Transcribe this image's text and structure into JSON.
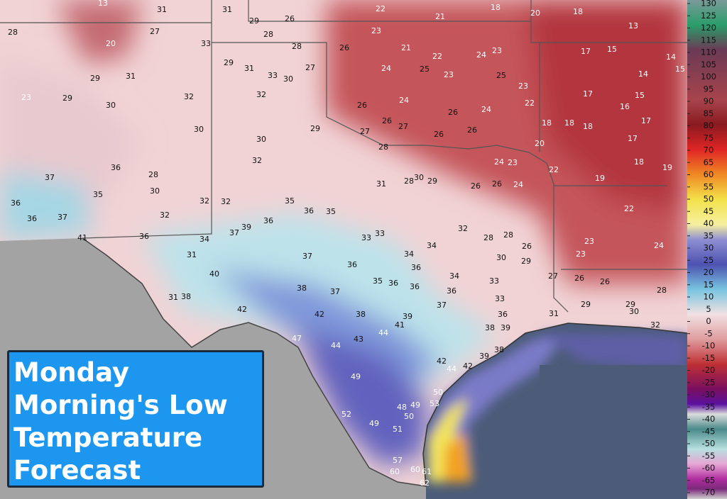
{
  "title_box": {
    "lines": [
      "Monday",
      "Morning's Low",
      "Temperature",
      "Forecast"
    ]
  },
  "colorbar": {
    "ticks": [
      130,
      125,
      120,
      115,
      110,
      105,
      100,
      95,
      90,
      85,
      80,
      75,
      70,
      65,
      60,
      55,
      50,
      45,
      40,
      35,
      30,
      25,
      20,
      15,
      10,
      5,
      0,
      -5,
      -10,
      -15,
      -20,
      -25,
      -30,
      -35,
      -40,
      -45,
      -50,
      -55,
      -60,
      -65,
      -70
    ]
  },
  "temperatures": [
    13,
    31,
    31,
    22,
    21,
    18,
    20,
    18,
    13,
    28,
    20,
    27,
    33,
    29,
    26,
    28,
    28,
    23,
    21,
    22,
    24,
    23,
    17,
    15,
    14,
    29,
    31,
    29,
    31,
    33,
    30,
    27,
    32,
    23,
    29,
    30,
    32,
    26,
    24,
    25,
    23,
    25,
    23,
    14,
    15,
    17,
    15,
    26,
    24,
    26,
    24,
    22,
    16,
    17,
    30,
    29,
    27,
    26,
    27,
    26,
    28,
    26,
    20,
    18,
    18,
    18,
    17,
    18,
    30,
    32,
    24,
    23,
    22,
    19,
    19,
    28,
    36,
    37,
    35,
    30,
    32,
    32,
    32,
    35,
    36,
    35,
    36,
    31,
    28,
    30,
    29,
    26,
    26,
    24,
    22,
    36,
    36,
    37,
    41,
    36,
    34,
    37,
    39,
    33,
    33,
    32,
    28,
    28,
    26,
    23,
    24,
    31,
    37,
    34,
    34,
    30,
    29,
    23,
    40,
    36,
    36,
    34,
    27,
    26,
    26,
    31,
    38,
    38,
    37,
    35,
    36,
    36,
    36,
    33,
    28,
    42,
    42,
    38,
    39,
    37,
    36,
    33,
    31,
    29,
    29,
    30,
    32,
    41,
    44,
    38,
    39,
    47,
    44,
    43,
    42,
    39,
    38,
    42,
    44,
    49,
    50,
    48,
    49,
    53,
    52,
    50,
    49,
    51,
    57,
    60,
    60,
    61,
    62
  ]
}
